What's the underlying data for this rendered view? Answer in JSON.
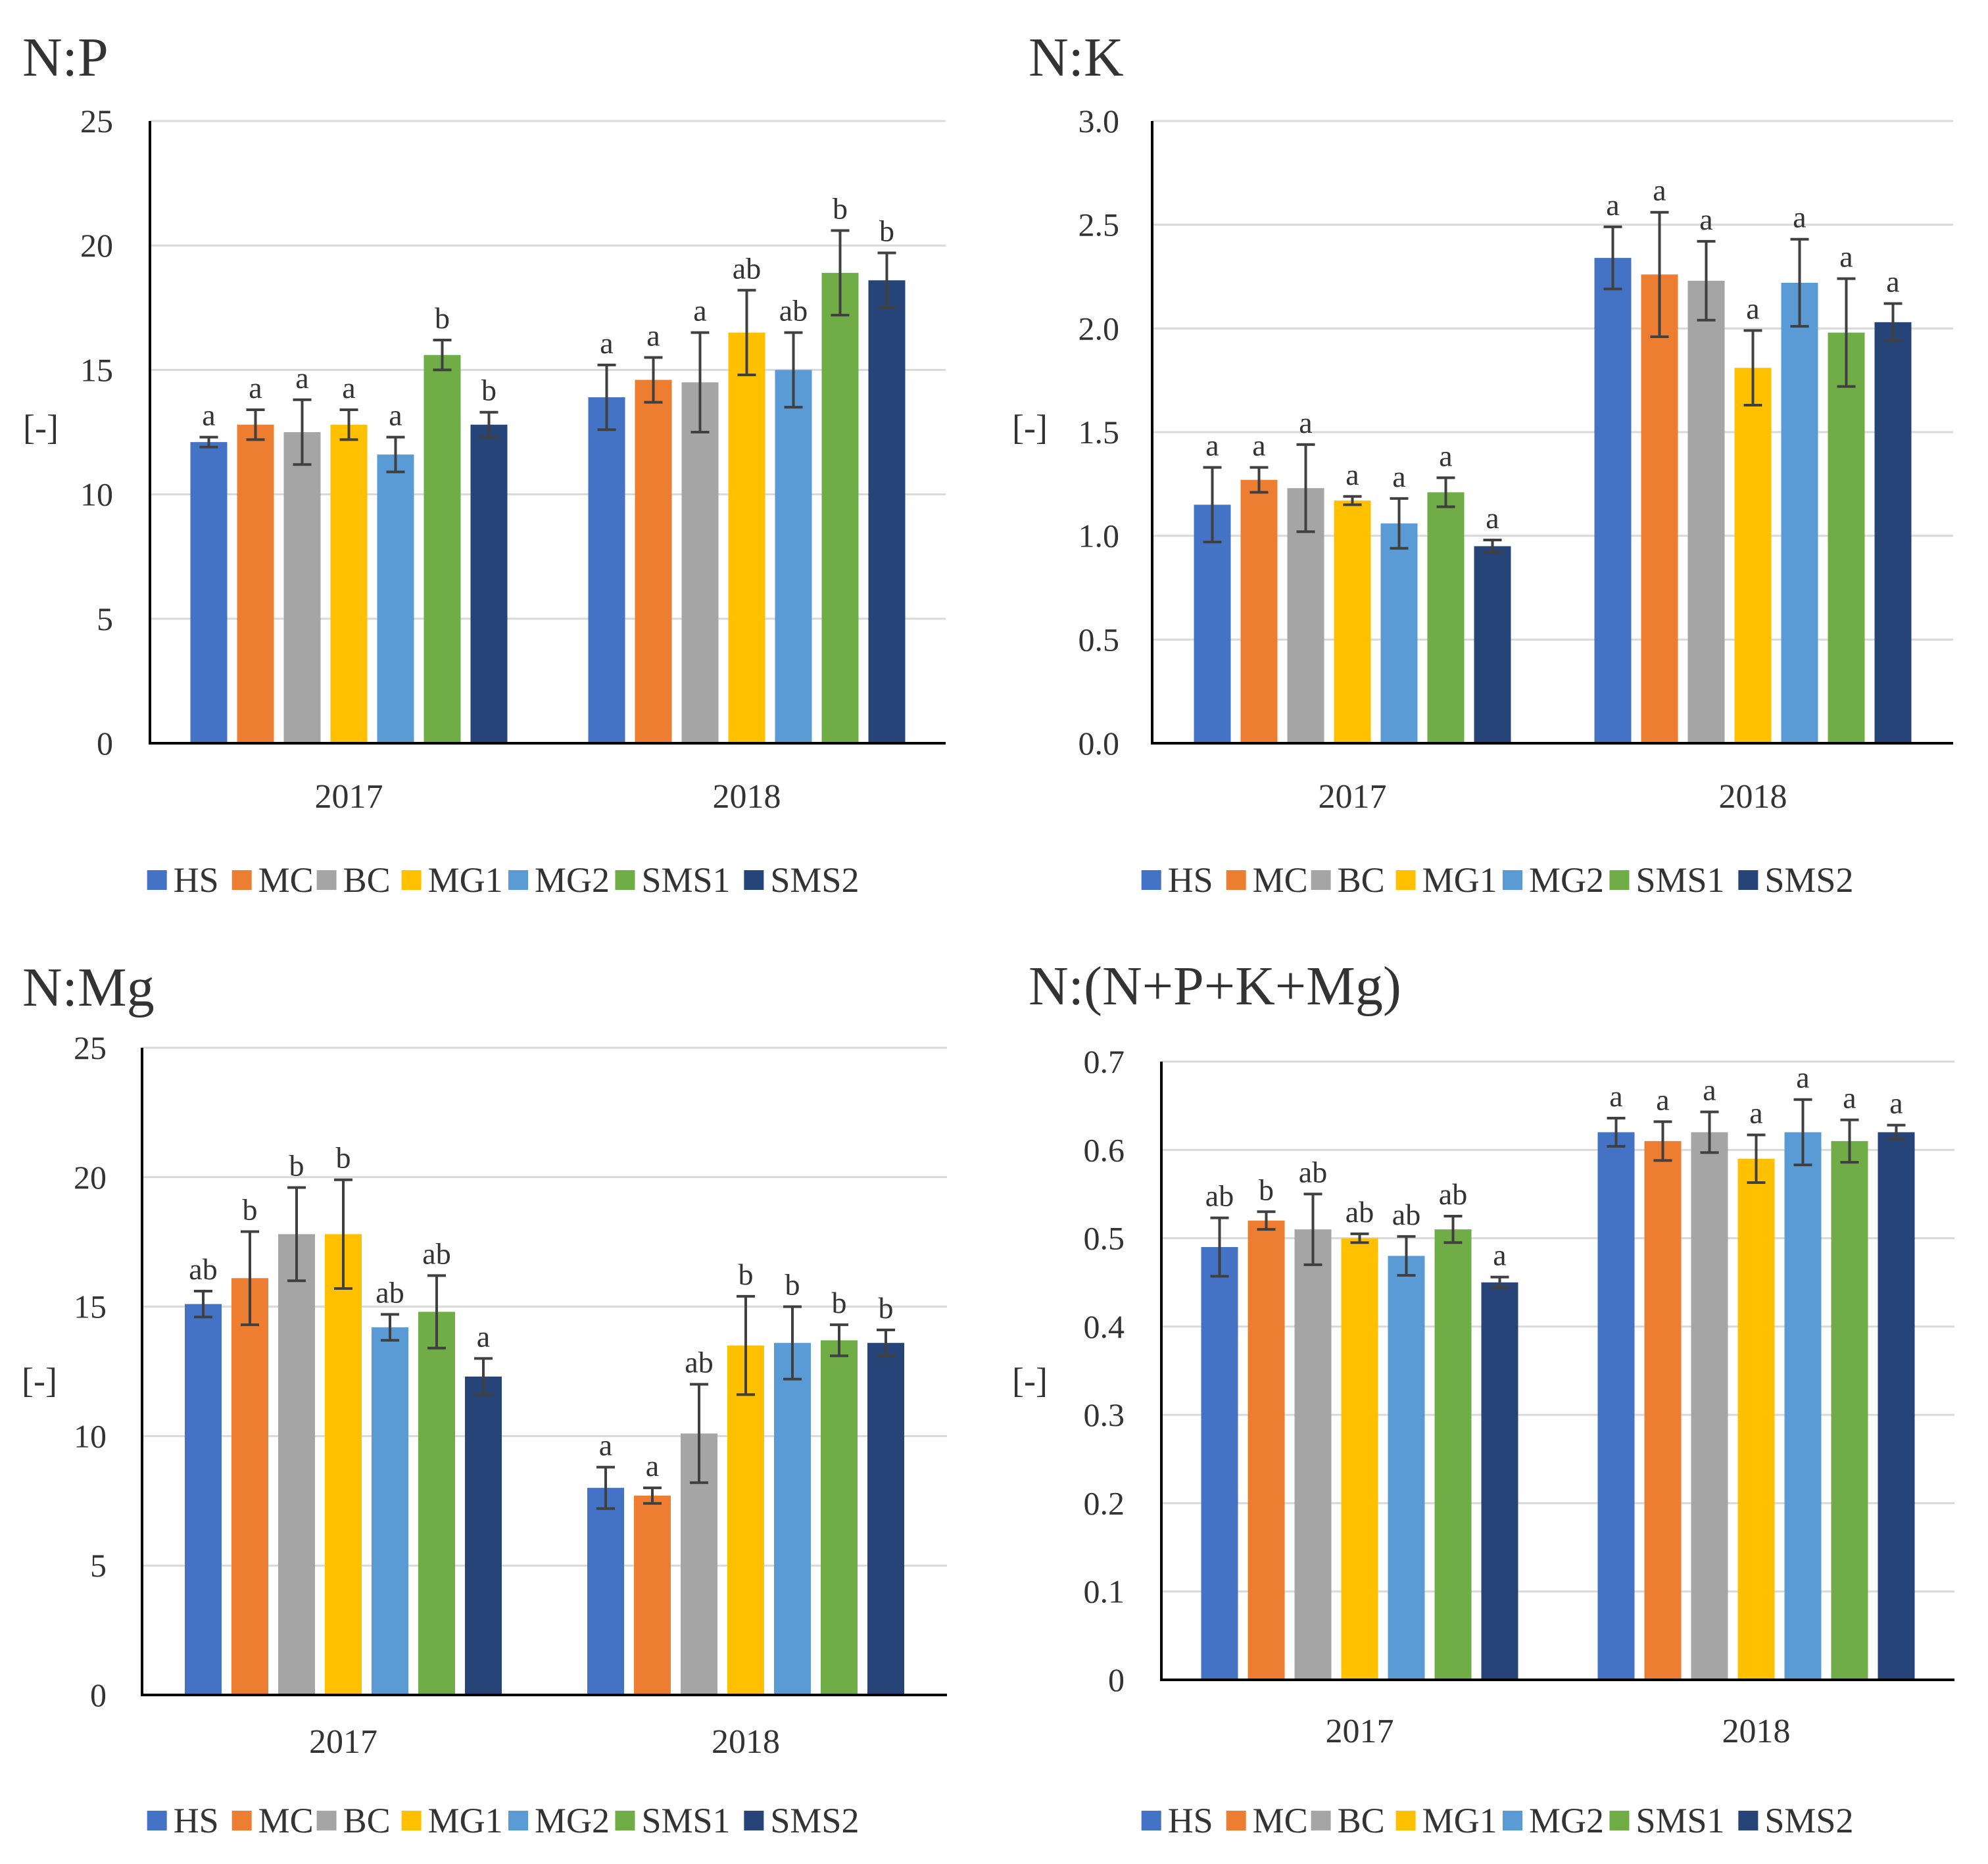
{
  "colors": {
    "HS": "#4472C4",
    "MC": "#ED7D31",
    "BC": "#A5A5A5",
    "MG1": "#FFC000",
    "MG2": "#5B9BD5",
    "SMS1": "#70AD47",
    "SMS2": "#264478",
    "grid": "#d9d9d9",
    "axis": "#000000",
    "error_bar": "#404040"
  },
  "chart_data": [
    {
      "type": "bar",
      "title": "N:P",
      "ylabel": "[-]",
      "categories": [
        "2017",
        "2018"
      ],
      "ylim": [
        0,
        25
      ],
      "yticks": [
        "0",
        "5",
        "10",
        "15",
        "20",
        "25"
      ],
      "grid": true,
      "legend_position": "bottom",
      "series": [
        {
          "name": "HS",
          "values": [
            12.1,
            13.9
          ],
          "errors": [
            0.2,
            1.3
          ],
          "letters": [
            "a",
            "a"
          ]
        },
        {
          "name": "MC",
          "values": [
            12.8,
            14.6
          ],
          "errors": [
            0.6,
            0.9
          ],
          "letters": [
            "a",
            "a"
          ]
        },
        {
          "name": "BC",
          "values": [
            12.5,
            14.5
          ],
          "errors": [
            1.3,
            2.0
          ],
          "letters": [
            "a",
            "a"
          ]
        },
        {
          "name": "MG1",
          "values": [
            12.8,
            16.5
          ],
          "errors": [
            0.6,
            1.7
          ],
          "letters": [
            "a",
            "ab"
          ]
        },
        {
          "name": "MG2",
          "values": [
            11.6,
            15.0
          ],
          "errors": [
            0.7,
            1.5
          ],
          "letters": [
            "a",
            "ab"
          ]
        },
        {
          "name": "SMS1",
          "values": [
            15.6,
            18.9
          ],
          "errors": [
            0.6,
            1.7
          ],
          "letters": [
            "b",
            "b"
          ]
        },
        {
          "name": "SMS2",
          "values": [
            12.8,
            18.6
          ],
          "errors": [
            0.5,
            1.1
          ],
          "letters": [
            "b",
            "b"
          ]
        }
      ]
    },
    {
      "type": "bar",
      "title": "N:K",
      "ylabel": "[-]",
      "categories": [
        "2017",
        "2018"
      ],
      "ylim": [
        0,
        3.0
      ],
      "yticks": [
        "0.0",
        "0.5",
        "1.0",
        "1.5",
        "2.0",
        "2.5",
        "3.0"
      ],
      "grid": true,
      "legend_position": "bottom",
      "series": [
        {
          "name": "HS",
          "values": [
            1.15,
            2.34
          ],
          "errors": [
            0.18,
            0.15
          ],
          "letters": [
            "a",
            "a"
          ]
        },
        {
          "name": "MC",
          "values": [
            1.27,
            2.26
          ],
          "errors": [
            0.06,
            0.3
          ],
          "letters": [
            "a",
            "a"
          ]
        },
        {
          "name": "BC",
          "values": [
            1.23,
            2.23
          ],
          "errors": [
            0.21,
            0.19
          ],
          "letters": [
            "a",
            "a"
          ]
        },
        {
          "name": "MG1",
          "values": [
            1.17,
            1.81
          ],
          "errors": [
            0.02,
            0.18
          ],
          "letters": [
            "a",
            "a"
          ]
        },
        {
          "name": "MG2",
          "values": [
            1.06,
            2.22
          ],
          "errors": [
            0.12,
            0.21
          ],
          "letters": [
            "a",
            "a"
          ]
        },
        {
          "name": "SMS1",
          "values": [
            1.21,
            1.98
          ],
          "errors": [
            0.07,
            0.26
          ],
          "letters": [
            "a",
            "a"
          ]
        },
        {
          "name": "SMS2",
          "values": [
            0.95,
            2.03
          ],
          "errors": [
            0.03,
            0.09
          ],
          "letters": [
            "a",
            "a"
          ]
        }
      ]
    },
    {
      "type": "bar",
      "title": "N:Mg",
      "ylabel": "[-]",
      "categories": [
        "2017",
        "2018"
      ],
      "ylim": [
        0,
        25
      ],
      "yticks": [
        "0",
        "5",
        "10",
        "15",
        "20",
        "25"
      ],
      "grid": true,
      "legend_position": "bottom",
      "series": [
        {
          "name": "HS",
          "values": [
            15.1,
            8.0
          ],
          "errors": [
            0.5,
            0.8
          ],
          "letters": [
            "ab",
            "a"
          ]
        },
        {
          "name": "MC",
          "values": [
            16.1,
            7.7
          ],
          "errors": [
            1.8,
            0.3
          ],
          "letters": [
            "b",
            "a"
          ]
        },
        {
          "name": "BC",
          "values": [
            17.8,
            10.1
          ],
          "errors": [
            1.8,
            1.9
          ],
          "letters": [
            "b",
            "ab"
          ]
        },
        {
          "name": "MG1",
          "values": [
            17.8,
            13.5
          ],
          "errors": [
            2.1,
            1.9
          ],
          "letters": [
            "b",
            "b"
          ]
        },
        {
          "name": "MG2",
          "values": [
            14.2,
            13.6
          ],
          "errors": [
            0.5,
            1.4
          ],
          "letters": [
            "ab",
            "b"
          ]
        },
        {
          "name": "SMS1",
          "values": [
            14.8,
            13.7
          ],
          "errors": [
            1.4,
            0.6
          ],
          "letters": [
            "ab",
            "b"
          ]
        },
        {
          "name": "SMS2",
          "values": [
            12.3,
            13.6
          ],
          "errors": [
            0.7,
            0.5
          ],
          "letters": [
            "a",
            "b"
          ]
        }
      ]
    },
    {
      "type": "bar",
      "title": "N:(N+P+K+Mg)",
      "ylabel": "[-]",
      "categories": [
        "2017",
        "2018"
      ],
      "ylim": [
        0,
        0.7
      ],
      "yticks": [
        "0",
        "0.1",
        "0.2",
        "0.3",
        "0.4",
        "0.5",
        "0.6",
        "0.7"
      ],
      "grid": true,
      "legend_position": "bottom",
      "series": [
        {
          "name": "HS",
          "values": [
            0.49,
            0.62
          ],
          "errors": [
            0.033,
            0.016
          ],
          "letters": [
            "ab",
            "a"
          ]
        },
        {
          "name": "MC",
          "values": [
            0.52,
            0.61
          ],
          "errors": [
            0.01,
            0.022
          ],
          "letters": [
            "b",
            "a"
          ]
        },
        {
          "name": "BC",
          "values": [
            0.51,
            0.62
          ],
          "errors": [
            0.04,
            0.023
          ],
          "letters": [
            "ab",
            "a"
          ]
        },
        {
          "name": "MG1",
          "values": [
            0.5,
            0.59
          ],
          "errors": [
            0.005,
            0.027
          ],
          "letters": [
            "ab",
            "a"
          ]
        },
        {
          "name": "MG2",
          "values": [
            0.48,
            0.62
          ],
          "errors": [
            0.022,
            0.037
          ],
          "letters": [
            "ab",
            "a"
          ]
        },
        {
          "name": "SMS1",
          "values": [
            0.51,
            0.61
          ],
          "errors": [
            0.015,
            0.024
          ],
          "letters": [
            "ab",
            "a"
          ]
        },
        {
          "name": "SMS2",
          "values": [
            0.45,
            0.62
          ],
          "errors": [
            0.006,
            0.008
          ],
          "letters": [
            "a",
            "a"
          ]
        }
      ]
    }
  ]
}
